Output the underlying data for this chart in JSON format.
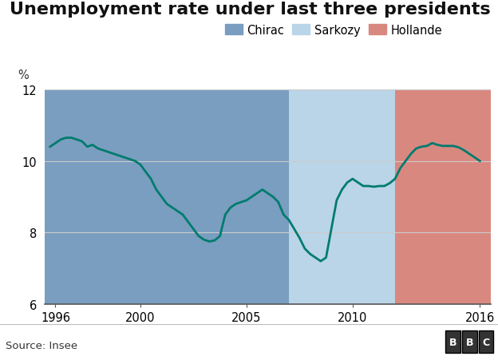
{
  "title": "Unemployment rate under last three presidents",
  "ylabel": "%",
  "source": "Source: Insee",
  "ylim": [
    6,
    12
  ],
  "yticks": [
    6,
    8,
    10,
    12
  ],
  "xlim_start": 1995.5,
  "xlim_end": 2016.5,
  "xticks": [
    1996,
    2000,
    2005,
    2010,
    2016
  ],
  "presidents": [
    {
      "name": "Chirac",
      "start": 1995.5,
      "end": 2007.0,
      "color": "#7a9ebf",
      "alpha": 1.0
    },
    {
      "name": "Sarkozy",
      "start": 2007.0,
      "end": 2012.0,
      "color": "#bad4e8",
      "alpha": 1.0
    },
    {
      "name": "Hollande",
      "start": 2012.0,
      "end": 2016.5,
      "color": "#d98880",
      "alpha": 1.0
    }
  ],
  "line_color": "#007b6e",
  "line_width": 2.0,
  "data": [
    [
      1995.75,
      10.4
    ],
    [
      1996.0,
      10.5
    ],
    [
      1996.25,
      10.6
    ],
    [
      1996.5,
      10.65
    ],
    [
      1996.75,
      10.65
    ],
    [
      1997.0,
      10.6
    ],
    [
      1997.25,
      10.55
    ],
    [
      1997.5,
      10.4
    ],
    [
      1997.75,
      10.45
    ],
    [
      1998.0,
      10.35
    ],
    [
      1998.25,
      10.3
    ],
    [
      1998.5,
      10.25
    ],
    [
      1998.75,
      10.2
    ],
    [
      1999.0,
      10.15
    ],
    [
      1999.25,
      10.1
    ],
    [
      1999.5,
      10.05
    ],
    [
      1999.75,
      10.0
    ],
    [
      2000.0,
      9.9
    ],
    [
      2000.25,
      9.7
    ],
    [
      2000.5,
      9.5
    ],
    [
      2000.75,
      9.2
    ],
    [
      2001.0,
      9.0
    ],
    [
      2001.25,
      8.8
    ],
    [
      2001.5,
      8.7
    ],
    [
      2001.75,
      8.6
    ],
    [
      2002.0,
      8.5
    ],
    [
      2002.25,
      8.3
    ],
    [
      2002.5,
      8.1
    ],
    [
      2002.75,
      7.9
    ],
    [
      2003.0,
      7.8
    ],
    [
      2003.25,
      7.75
    ],
    [
      2003.5,
      7.78
    ],
    [
      2003.75,
      7.9
    ],
    [
      2004.0,
      8.5
    ],
    [
      2004.25,
      8.7
    ],
    [
      2004.5,
      8.8
    ],
    [
      2004.75,
      8.85
    ],
    [
      2005.0,
      8.9
    ],
    [
      2005.25,
      9.0
    ],
    [
      2005.5,
      9.1
    ],
    [
      2005.75,
      9.2
    ],
    [
      2006.0,
      9.1
    ],
    [
      2006.25,
      9.0
    ],
    [
      2006.5,
      8.85
    ],
    [
      2006.75,
      8.5
    ],
    [
      2007.0,
      8.35
    ],
    [
      2007.25,
      8.1
    ],
    [
      2007.5,
      7.85
    ],
    [
      2007.75,
      7.55
    ],
    [
      2008.0,
      7.4
    ],
    [
      2008.25,
      7.3
    ],
    [
      2008.5,
      7.2
    ],
    [
      2008.75,
      7.3
    ],
    [
      2009.0,
      8.1
    ],
    [
      2009.25,
      8.9
    ],
    [
      2009.5,
      9.2
    ],
    [
      2009.75,
      9.4
    ],
    [
      2010.0,
      9.5
    ],
    [
      2010.25,
      9.4
    ],
    [
      2010.5,
      9.3
    ],
    [
      2010.75,
      9.3
    ],
    [
      2011.0,
      9.28
    ],
    [
      2011.25,
      9.3
    ],
    [
      2011.5,
      9.3
    ],
    [
      2011.75,
      9.38
    ],
    [
      2012.0,
      9.5
    ],
    [
      2012.25,
      9.8
    ],
    [
      2012.5,
      10.0
    ],
    [
      2012.75,
      10.2
    ],
    [
      2013.0,
      10.35
    ],
    [
      2013.25,
      10.4
    ],
    [
      2013.5,
      10.42
    ],
    [
      2013.75,
      10.5
    ],
    [
      2014.0,
      10.45
    ],
    [
      2014.25,
      10.42
    ],
    [
      2014.5,
      10.42
    ],
    [
      2014.75,
      10.42
    ],
    [
      2015.0,
      10.38
    ],
    [
      2015.25,
      10.3
    ],
    [
      2015.5,
      10.2
    ],
    [
      2015.75,
      10.1
    ],
    [
      2016.0,
      10.0
    ]
  ],
  "background_color": "#ffffff",
  "footer_bg": "#e8e8e8",
  "grid_color": "#cccccc",
  "title_fontsize": 16,
  "tick_fontsize": 10.5
}
